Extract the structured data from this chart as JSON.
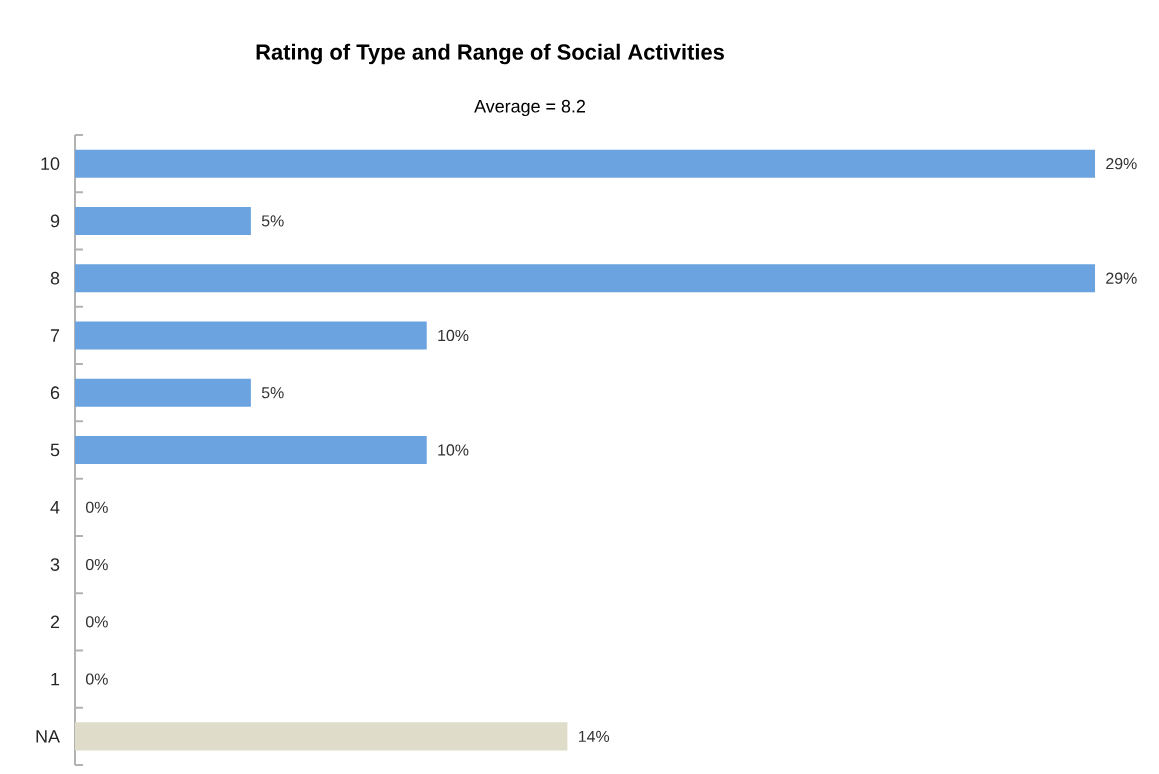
{
  "chart_data": {
    "type": "bar",
    "orientation": "horizontal",
    "title": "Rating of Type and Range of Social Activities",
    "subtitle": "Average = 8.2",
    "categories": [
      "10",
      "9",
      "8",
      "7",
      "6",
      "5",
      "4",
      "3",
      "2",
      "1",
      "NA"
    ],
    "values": [
      29,
      5,
      29,
      10,
      5,
      10,
      0,
      0,
      0,
      0,
      14
    ],
    "colors": [
      "#6aa3e0",
      "#6aa3e0",
      "#6aa3e0",
      "#6aa3e0",
      "#6aa3e0",
      "#6aa3e0",
      "#6aa3e0",
      "#6aa3e0",
      "#6aa3e0",
      "#6aa3e0",
      "#dfddc9"
    ],
    "value_labels": [
      "29%",
      "5%",
      "29%",
      "10%",
      "5%",
      "10%",
      "0%",
      "0%",
      "0%",
      "0%",
      "14%"
    ]
  }
}
